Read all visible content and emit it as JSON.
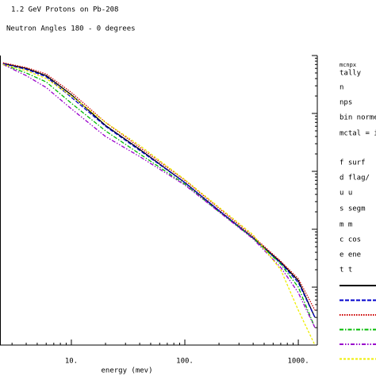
{
  "chart_data": {
    "type": "line",
    "title": "1.2 GeV Protons on Pb-208",
    "subtitle": "Neutron Angles 180 - 0 degrees",
    "x_label": "energy (mev)",
    "x": [
      2.5,
      4,
      6,
      10,
      20,
      40,
      100,
      200,
      400,
      700,
      1000,
      1400
    ],
    "series": [
      {
        "color": "#000000",
        "dash": "solid",
        "values": [
          0.73,
          0.6,
          0.45,
          0.21,
          0.062,
          0.024,
          0.0064,
          0.0021,
          0.00071,
          0.00027,
          0.00013,
          3e-05
        ]
      },
      {
        "color": "#0000cc",
        "dash": "dashed",
        "values": [
          0.72,
          0.58,
          0.43,
          0.19,
          0.06,
          0.023,
          0.0064,
          0.0021,
          0.0007,
          0.00026,
          0.00012,
          3e-05
        ]
      },
      {
        "color": "#cc0000",
        "dash": "dotted",
        "values": [
          0.75,
          0.62,
          0.48,
          0.23,
          0.07,
          0.026,
          0.007,
          0.0023,
          0.00075,
          0.00028,
          0.00014,
          4e-05
        ]
      },
      {
        "color": "#00bb00",
        "dash": "dashdot",
        "values": [
          0.7,
          0.5,
          0.35,
          0.15,
          0.05,
          0.02,
          0.006,
          0.002,
          0.0007,
          0.00025,
          0.0001,
          2e-05
        ]
      },
      {
        "color": "#9900cc",
        "dash": "dashdotdot",
        "values": [
          0.7,
          0.45,
          0.28,
          0.12,
          0.04,
          0.018,
          0.0058,
          0.002,
          0.00068,
          0.00022,
          8e-05,
          2e-05
        ]
      },
      {
        "color": "#eeee00",
        "dash": "longdash",
        "values": [
          0.7,
          0.55,
          0.4,
          0.2,
          0.07,
          0.028,
          0.0072,
          0.0024,
          0.0008,
          0.0002,
          4e-05,
          1e-05
        ]
      }
    ],
    "xlim": [
      2.35,
      1470
    ],
    "xticks": [
      {
        "value": 10,
        "label": "10."
      },
      {
        "value": 100,
        "label": "100."
      },
      {
        "value": 1000,
        "label": "1000."
      }
    ],
    "ylim": [
      1e-05,
      1
    ],
    "xscale": "log",
    "yscale": "log",
    "info": [
      "mcnpx",
      "tally",
      "n",
      "nps",
      "bin norme",
      "mctal = i",
      "f   surf",
      "d  flag/",
      "u    u",
      "s  segm",
      "m    m",
      "c   cos",
      "e    ene",
      "t    t"
    ]
  }
}
